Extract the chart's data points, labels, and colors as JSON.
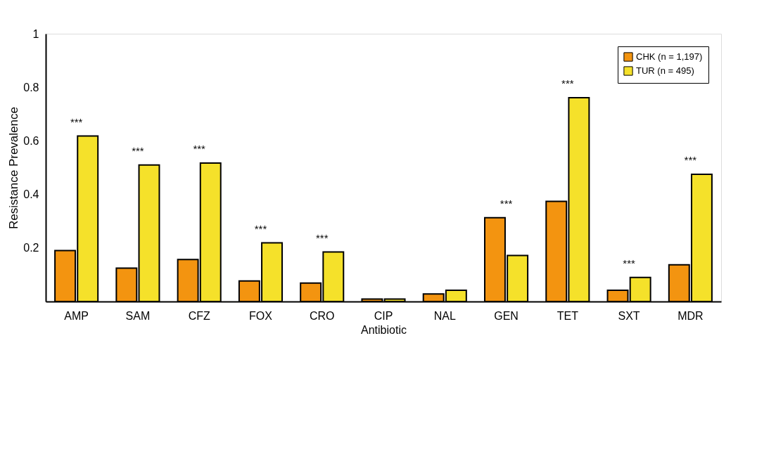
{
  "chart_data": {
    "type": "bar",
    "xlabel": "Antibiotic",
    "ylabel": "Resistance Prevalence",
    "categories": [
      "AMP",
      "SAM",
      "CFZ",
      "FOX",
      "CRO",
      "CIP",
      "NAL",
      "GEN",
      "TET",
      "SXT",
      "MDR"
    ],
    "series": [
      {
        "name": "CHK (n = 1,197)",
        "color": "#f39410",
        "values": [
          0.19,
          0.125,
          0.157,
          0.077,
          0.069,
          0.009,
          0.028,
          0.313,
          0.374,
          0.042,
          0.137
        ]
      },
      {
        "name": "TUR (n = 495)",
        "color": "#f5e12a",
        "values": [
          0.618,
          0.51,
          0.517,
          0.219,
          0.185,
          0.009,
          0.042,
          0.172,
          0.761,
          0.09,
          0.475
        ]
      }
    ],
    "ylim": [
      0,
      1
    ],
    "yticks": [
      0.2,
      0.4,
      0.6,
      0.8,
      1
    ],
    "grid": false,
    "legend": "top right",
    "annotations": [
      {
        "text": "***",
        "x": "AMP",
        "y": 0.618
      },
      {
        "text": "***",
        "x": "SAM",
        "y": 0.51
      },
      {
        "text": "***",
        "x": "CFZ",
        "y": 0.517
      },
      {
        "text": "***",
        "x": "FOX",
        "y": 0.219
      },
      {
        "text": "***",
        "x": "CRO",
        "y": 0.185
      },
      {
        "text": "***",
        "x": "GEN",
        "y": 0.313
      },
      {
        "text": "***",
        "x": "TET",
        "y": 0.761
      },
      {
        "text": "***",
        "x": "SXT",
        "y": 0.09
      },
      {
        "text": "***",
        "x": "MDR",
        "y": 0.475
      }
    ]
  }
}
